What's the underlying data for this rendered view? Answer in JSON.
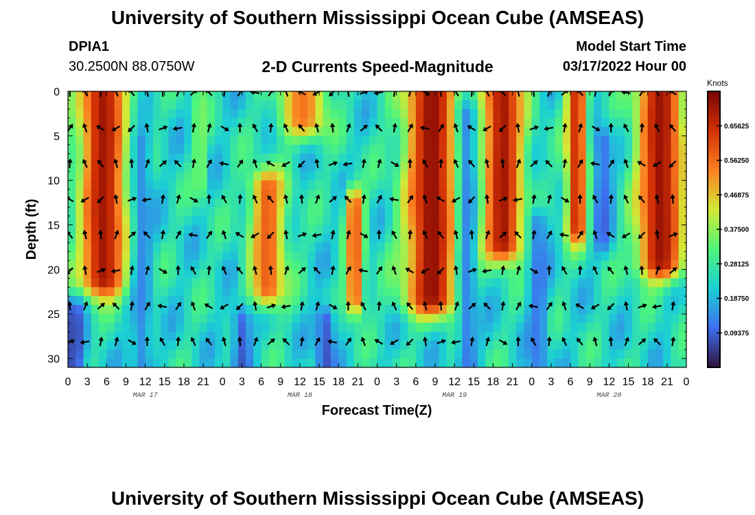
{
  "header": {
    "title": "University of Southern Mississippi Ocean Cube (AMSEAS)",
    "station_id": "DPIA1",
    "station_coords": "30.2500N  88.0750W",
    "subtitle": "2-D Currents Speed-Magnitude",
    "model_start_label": "Model Start Time",
    "model_start_value": "03/17/2022 Hour 00"
  },
  "footer": {
    "title_repeat": "University of Southern Mississippi Ocean Cube (AMSEAS)"
  },
  "chart_data": {
    "type": "heatmap",
    "title": "2-D Currents Speed-Magnitude",
    "xlabel": "Forecast Time(Z)",
    "ylabel": "Depth (ft)",
    "x_ticks": [
      "0",
      "3",
      "6",
      "9",
      "12",
      "15",
      "18",
      "21",
      "0",
      "3",
      "6",
      "9",
      "12",
      "15",
      "18",
      "21",
      "0",
      "3",
      "6",
      "9",
      "12",
      "15",
      "18",
      "21",
      "0",
      "3",
      "6",
      "9",
      "12",
      "15",
      "18",
      "21",
      "0"
    ],
    "x_range_hours": [
      0,
      96
    ],
    "day_labels": [
      {
        "label": "MAR 17",
        "hour": 12
      },
      {
        "label": "MAR 18",
        "hour": 36
      },
      {
        "label": "MAR 19",
        "hour": 60
      },
      {
        "label": "MAR 20",
        "hour": 84
      }
    ],
    "y_ticks": [
      0,
      5,
      10,
      15,
      20,
      25,
      30
    ],
    "y_range_ft": [
      0,
      31
    ],
    "colorbar": {
      "unit": "Knots",
      "range": [
        0,
        0.75
      ],
      "tick_values": [
        0.09375,
        0.1875,
        0.28125,
        0.375,
        0.46875,
        0.5625,
        0.65625
      ],
      "tick_labels": [
        "0.09375",
        "0.18750",
        "0.28125",
        "0.37500",
        "0.46875",
        "0.56250",
        "0.65625"
      ],
      "colors": [
        "#30123b",
        "#3e6ff0",
        "#1bcfd4",
        "#4ff57a",
        "#d2e935",
        "#fb8022",
        "#d23105",
        "#7a0403"
      ]
    },
    "speed_features": [
      {
        "center_hour": 5.5,
        "half_width_hours": 4.0,
        "depth_top": 0,
        "depth_bottom": 21,
        "peak_knots": 0.7
      },
      {
        "center_hour": 20.5,
        "half_width_hours": 1.2,
        "depth_top": 1,
        "depth_bottom": 10,
        "peak_knots": 0.36
      },
      {
        "center_hour": 31.0,
        "half_width_hours": 3.0,
        "depth_top": 11,
        "depth_bottom": 22,
        "peak_knots": 0.58
      },
      {
        "center_hour": 36.5,
        "half_width_hours": 4.0,
        "depth_top": 0,
        "depth_bottom": 3,
        "peak_knots": 0.55
      },
      {
        "center_hour": 44.5,
        "half_width_hours": 1.5,
        "depth_top": 13,
        "depth_bottom": 23,
        "peak_knots": 0.6
      },
      {
        "center_hour": 56.5,
        "half_width_hours": 4.5,
        "depth_top": 0,
        "depth_bottom": 23,
        "peak_knots": 0.72
      },
      {
        "center_hour": 67.5,
        "half_width_hours": 3.5,
        "depth_top": 0,
        "depth_bottom": 17,
        "peak_knots": 0.7
      },
      {
        "center_hour": 79.0,
        "half_width_hours": 1.8,
        "depth_top": 0,
        "depth_bottom": 15,
        "peak_knots": 0.66
      },
      {
        "center_hour": 92.0,
        "half_width_hours": 4.0,
        "depth_top": 0,
        "depth_bottom": 19,
        "peak_knots": 0.71
      }
    ],
    "slow_features": [
      {
        "center_hour": 1.0,
        "depth_top": 25,
        "depth_bottom": 31,
        "min_knots": 0.04
      },
      {
        "center_hour": 11.5,
        "depth_top": 6,
        "depth_bottom": 31,
        "min_knots": 0.12
      },
      {
        "center_hour": 27.0,
        "depth_top": 26,
        "depth_bottom": 31,
        "min_knots": 0.06
      },
      {
        "center_hour": 40.0,
        "depth_top": 26,
        "depth_bottom": 31,
        "min_knots": 0.05
      },
      {
        "center_hour": 62.0,
        "depth_top": 3,
        "depth_bottom": 31,
        "min_knots": 0.1
      },
      {
        "center_hour": 73.0,
        "depth_top": 15,
        "depth_bottom": 31,
        "min_knots": 0.1
      },
      {
        "center_hour": 83.0,
        "depth_top": 6,
        "depth_bottom": 16,
        "min_knots": 0.08
      }
    ],
    "background_knots": 0.24,
    "arrow_depths_ft": [
      0,
      4,
      8,
      12,
      16,
      20,
      24,
      28
    ],
    "arrow_interval_hours": 2.4,
    "arrow_directions_deg": [
      180,
      200,
      160,
      190,
      140,
      210,
      170,
      150,
      230,
      120,
      195,
      165,
      100,
      250,
      185,
      135,
      60,
      300,
      175,
      215,
      80,
      155,
      190,
      45
    ]
  }
}
